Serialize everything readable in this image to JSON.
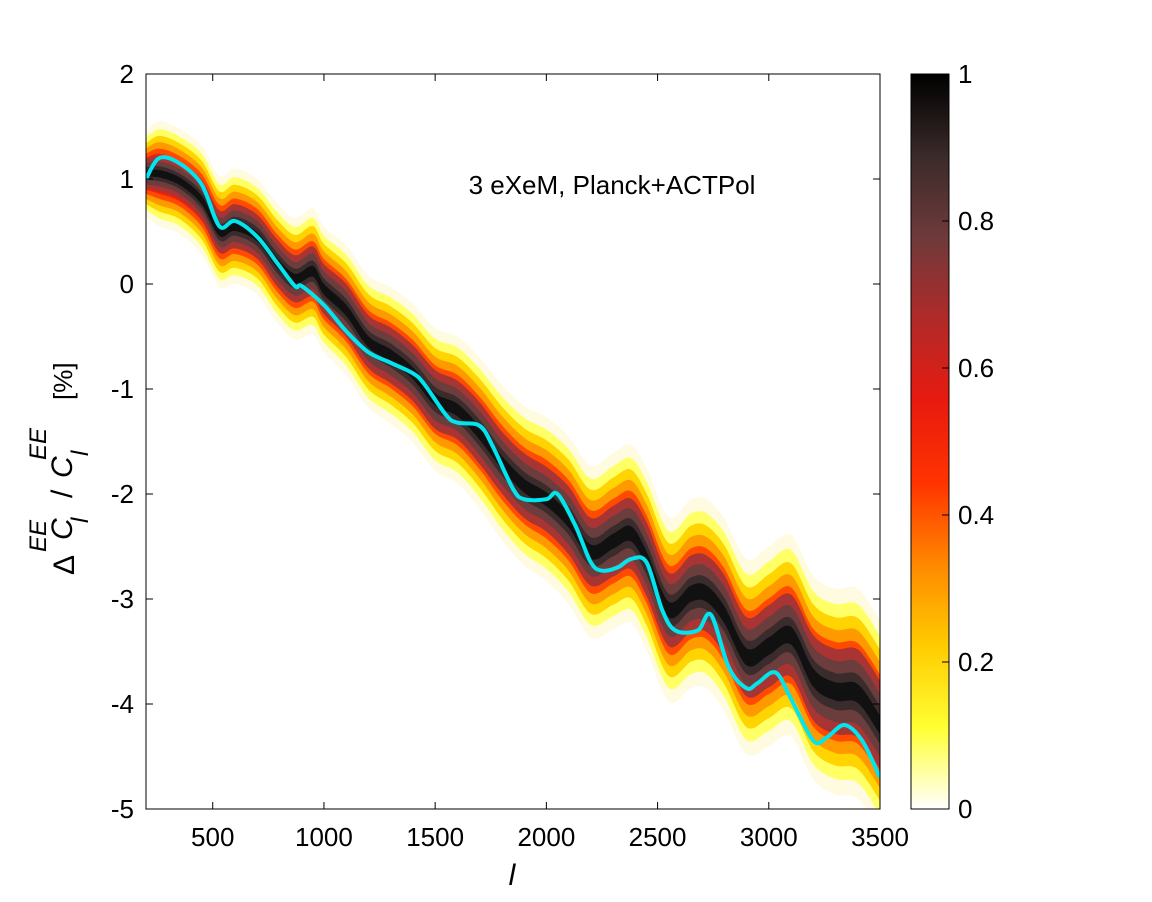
{
  "chart_data": {
    "type": "area",
    "title": "",
    "annotation": "3 eXeM, Planck+ACTPol",
    "xlabel": "l",
    "ylabel_parts": {
      "delta": "Δ",
      "num_sup": "EE",
      "num_C": "C",
      "num_sub": "l",
      "slash": "/",
      "den_C": "C",
      "den_sup": "EE",
      "den_sub": "l",
      "unit": "[%]"
    },
    "xlim": [
      200,
      3500
    ],
    "ylim": [
      -5,
      2
    ],
    "xticks": [
      500,
      1000,
      1500,
      2000,
      2500,
      3000,
      3500
    ],
    "yticks": [
      2,
      1,
      0,
      -1,
      -2,
      -3,
      -4,
      -5
    ],
    "grid": false,
    "colorbar": {
      "range": [
        0,
        1
      ],
      "ticks": [
        1,
        0.8,
        0.6,
        0.4,
        0.2,
        0
      ],
      "colormap": [
        "#ffffff",
        "#ffff33",
        "#ffcc00",
        "#ff8800",
        "#ff3300",
        "#e81a10",
        "#b02a2a",
        "#6e3a3a",
        "#3a2a2a",
        "#000000"
      ]
    },
    "series": [
      {
        "color": "#00e5ee",
        "x": [
          200,
          260,
          350,
          450,
          530,
          600,
          700,
          790,
          870,
          900,
          1000,
          1100,
          1200,
          1300,
          1400,
          1450,
          1550,
          1600,
          1700,
          1760,
          1850,
          1900,
          2000,
          2050,
          2130,
          2200,
          2250,
          2320,
          2380,
          2450,
          2520,
          2580,
          2680,
          2740,
          2820,
          2900,
          2950,
          3030,
          3100,
          3200,
          3260,
          3340,
          3420,
          3500
        ],
        "y": [
          1.0,
          1.2,
          1.15,
          0.95,
          0.55,
          0.6,
          0.45,
          0.2,
          -0.02,
          -0.02,
          -0.2,
          -0.45,
          -0.65,
          -0.75,
          -0.85,
          -0.95,
          -1.25,
          -1.32,
          -1.35,
          -1.55,
          -1.95,
          -2.05,
          -2.05,
          -2.0,
          -2.3,
          -2.65,
          -2.73,
          -2.7,
          -2.62,
          -2.65,
          -3.1,
          -3.3,
          -3.3,
          -3.15,
          -3.65,
          -3.85,
          -3.8,
          -3.7,
          -3.95,
          -4.35,
          -4.32,
          -4.2,
          -4.35,
          -4.7
        ]
      }
    ],
    "density_band": {
      "x": [
        200,
        260,
        350,
        450,
        530,
        600,
        700,
        790,
        870,
        950,
        1000,
        1100,
        1200,
        1300,
        1400,
        1500,
        1600,
        1700,
        1800,
        1900,
        2000,
        2100,
        2200,
        2300,
        2380,
        2450,
        2550,
        2650,
        2720,
        2800,
        2900,
        3000,
        3100,
        3200,
        3300,
        3400,
        3500
      ],
      "center": [
        1.05,
        1.05,
        0.98,
        0.8,
        0.5,
        0.55,
        0.45,
        0.2,
        0.05,
        0.12,
        -0.05,
        -0.25,
        -0.55,
        -0.68,
        -0.85,
        -1.1,
        -1.2,
        -1.42,
        -1.7,
        -1.92,
        -2.05,
        -2.25,
        -2.55,
        -2.45,
        -2.38,
        -2.62,
        -3.1,
        -2.95,
        -2.95,
        -3.15,
        -3.55,
        -3.45,
        -3.35,
        -3.75,
        -3.88,
        -3.9,
        -4.2
      ],
      "inner_half_width": [
        0.1,
        0.12,
        0.12,
        0.13,
        0.14,
        0.15,
        0.15,
        0.16,
        0.16,
        0.17,
        0.17,
        0.18,
        0.18,
        0.19,
        0.19,
        0.2,
        0.2,
        0.21,
        0.21,
        0.22,
        0.22,
        0.23,
        0.23,
        0.24,
        0.24,
        0.25,
        0.25,
        0.26,
        0.26,
        0.27,
        0.27,
        0.28,
        0.28,
        0.29,
        0.29,
        0.3,
        0.3
      ],
      "outer_half_width": [
        0.4,
        0.5,
        0.5,
        0.52,
        0.53,
        0.55,
        0.55,
        0.57,
        0.58,
        0.6,
        0.6,
        0.62,
        0.63,
        0.65,
        0.66,
        0.68,
        0.7,
        0.72,
        0.74,
        0.76,
        0.78,
        0.8,
        0.82,
        0.84,
        0.85,
        0.87,
        0.88,
        0.9,
        0.9,
        0.92,
        0.93,
        0.95,
        0.96,
        0.97,
        0.98,
        1.0,
        1.0
      ]
    }
  }
}
